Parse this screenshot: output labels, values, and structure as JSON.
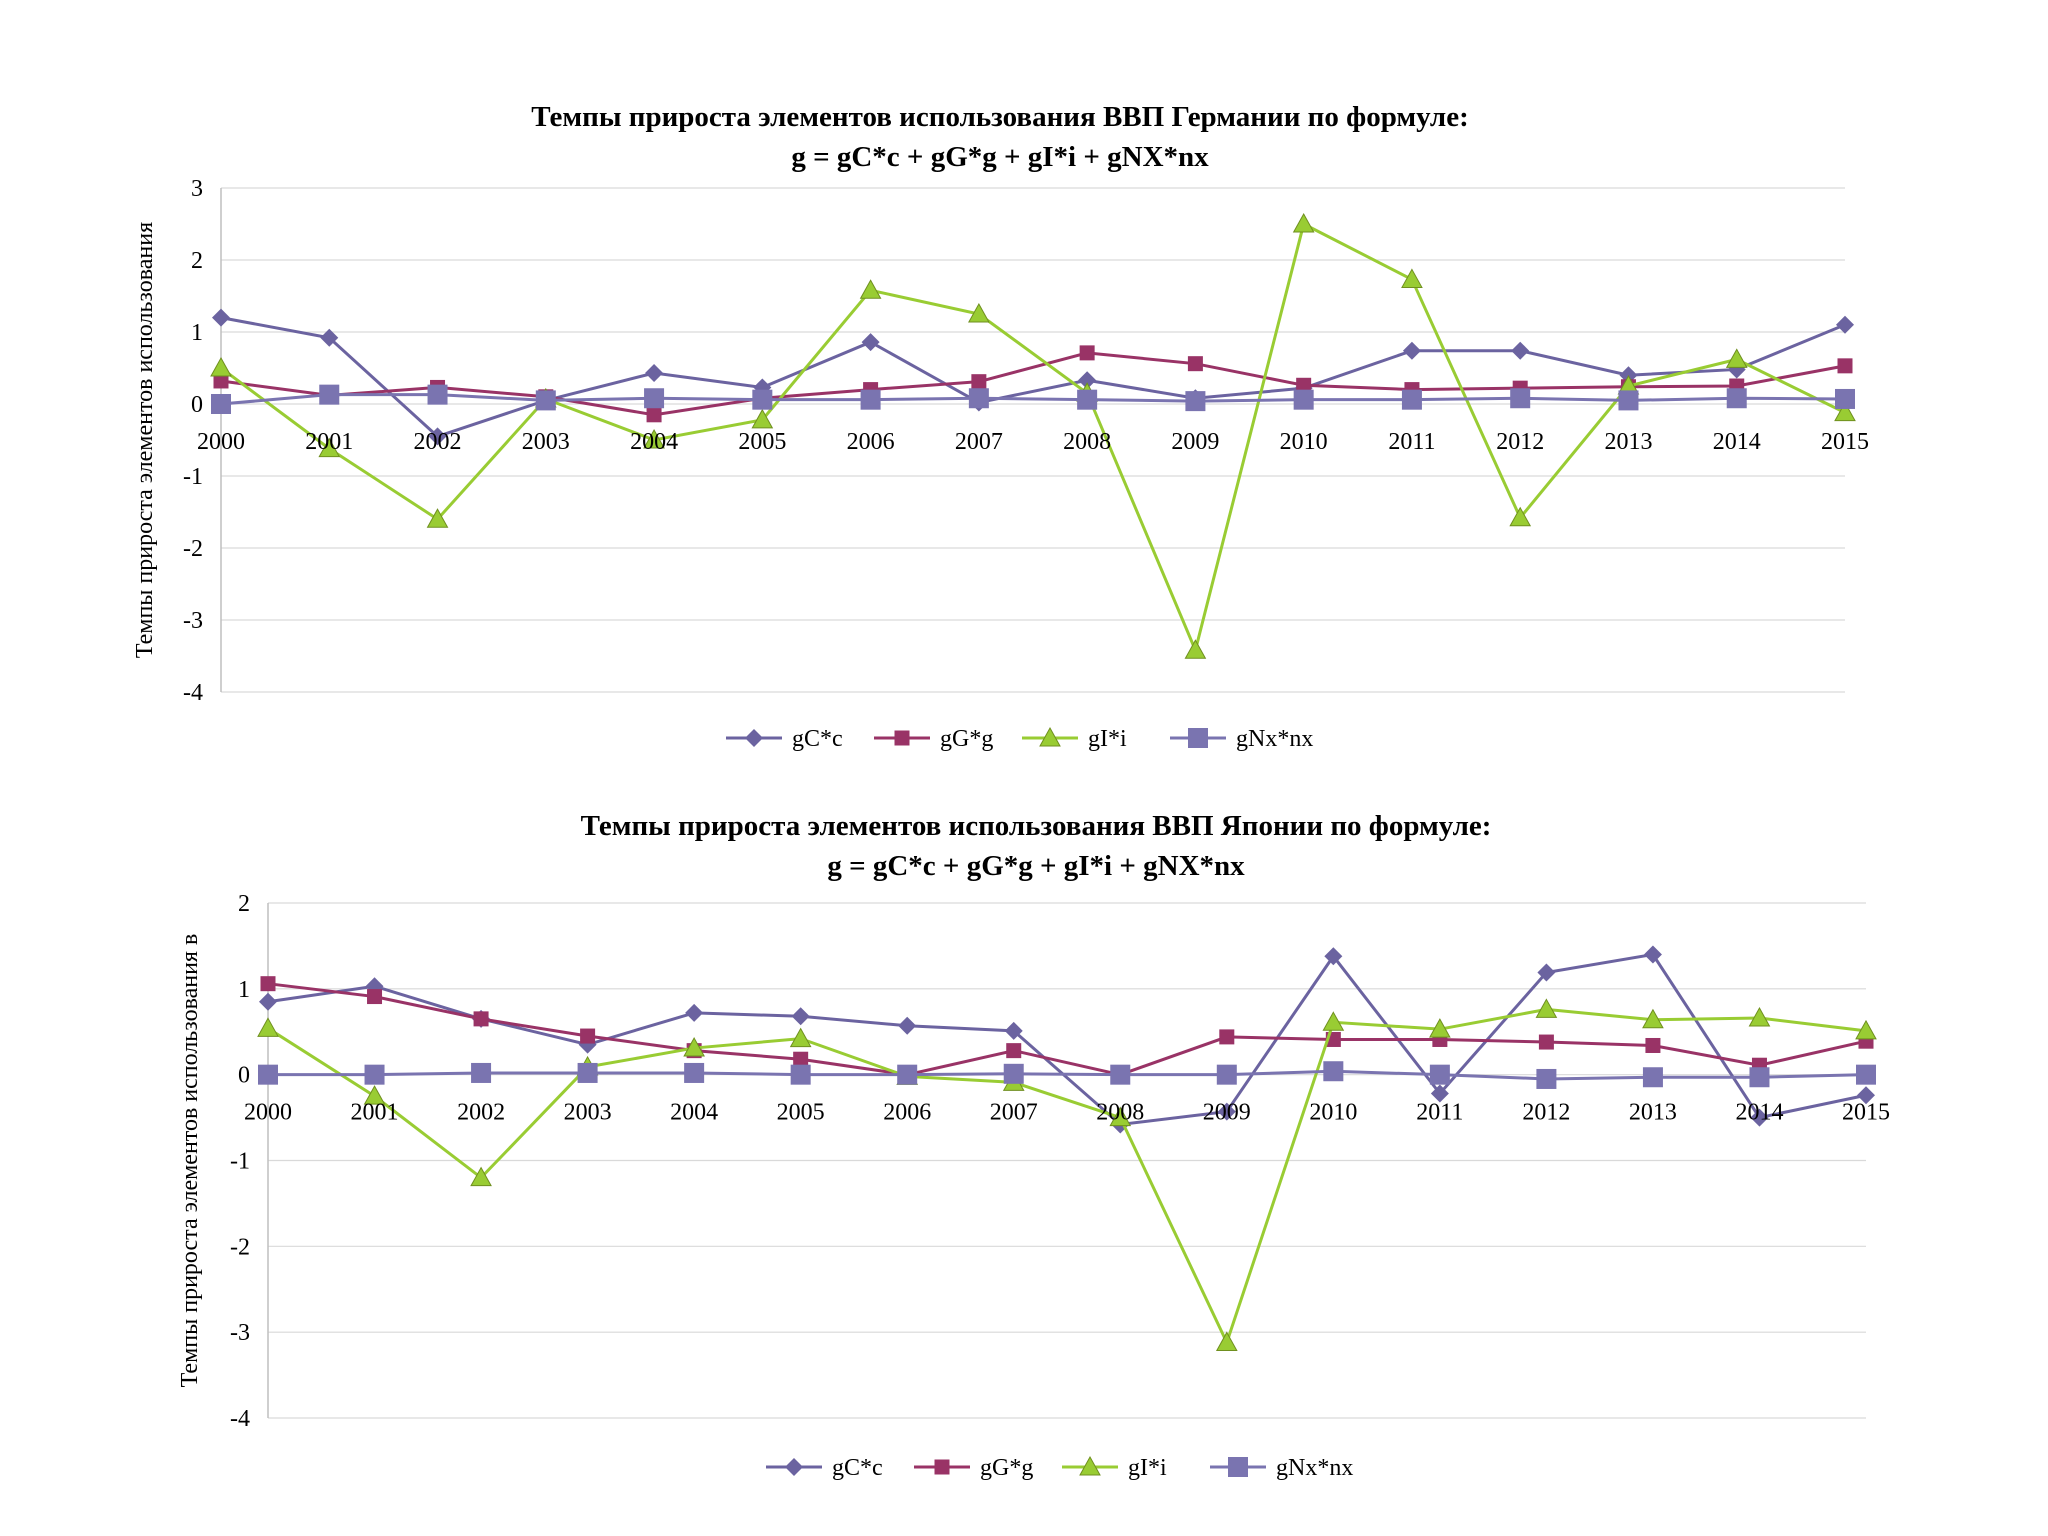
{
  "colors": {
    "gCc": "#6b63a0",
    "gGg": "#993366",
    "gIi": "#99cc33",
    "gNx": "#7a74b0",
    "grid": "#d9d9d9",
    "axis": "#bfbfbf"
  },
  "chart_data": [
    {
      "type": "line",
      "title": "Темпы прироста элементов использования ВВП Германии по формуле:",
      "subtitle": "g = gC*c + gG*g + gI*i + gNX*nx",
      "ylabel": "Темпы прироста элементов использования",
      "ylim": [
        -4,
        3
      ],
      "yticks": [
        "3",
        "2",
        "1",
        "0",
        "-1",
        "-2",
        "-3",
        "-4"
      ],
      "grid": true,
      "legend_position": "bottom",
      "categories": [
        "2000",
        "2001",
        "2002",
        "2003",
        "2004",
        "2005",
        "2006",
        "2007",
        "2008",
        "2009",
        "2010",
        "2011",
        "2012",
        "2013",
        "2014",
        "2015"
      ],
      "series": [
        {
          "name": "gC*c",
          "marker": "diamond",
          "values": [
            1.2,
            0.92,
            -0.45,
            0.05,
            0.43,
            0.23,
            0.86,
            0.02,
            0.33,
            0.08,
            0.22,
            0.74,
            0.74,
            0.4,
            0.48,
            1.1
          ]
        },
        {
          "name": "gG*g",
          "marker": "square-small",
          "values": [
            0.32,
            0.12,
            0.23,
            0.1,
            -0.15,
            0.08,
            0.2,
            0.31,
            0.71,
            0.56,
            0.26,
            0.2,
            0.22,
            0.24,
            0.25,
            0.53
          ]
        },
        {
          "name": "gI*i",
          "marker": "triangle",
          "values": [
            0.5,
            -0.62,
            -1.6,
            0.07,
            -0.5,
            -0.22,
            1.58,
            1.25,
            0.15,
            -3.42,
            2.5,
            1.73,
            -1.58,
            0.25,
            0.62,
            -0.12
          ]
        },
        {
          "name": "gNx*nx",
          "marker": "square",
          "values": [
            0.0,
            0.13,
            0.13,
            0.05,
            0.08,
            0.06,
            0.06,
            0.08,
            0.06,
            0.04,
            0.06,
            0.06,
            0.08,
            0.05,
            0.08,
            0.07
          ]
        }
      ]
    },
    {
      "type": "line",
      "title": "Темпы прироста элементов использования ВВП Японии по формуле:",
      "subtitle": "g = gC*c + gG*g + gI*i + gNX*nx",
      "ylabel": "Темпы прироста элементов использования в",
      "ylim": [
        -4,
        2
      ],
      "yticks": [
        "2",
        "1",
        "0",
        "-1",
        "-2",
        "-3",
        "-4"
      ],
      "grid": true,
      "legend_position": "bottom",
      "categories": [
        "2000",
        "2001",
        "2002",
        "2003",
        "2004",
        "2005",
        "2006",
        "2007",
        "2008",
        "2009",
        "2010",
        "2011",
        "2012",
        "2013",
        "2014",
        "2015"
      ],
      "series": [
        {
          "name": "gC*c",
          "marker": "diamond",
          "values": [
            0.85,
            1.03,
            0.65,
            0.35,
            0.72,
            0.68,
            0.57,
            0.51,
            -0.58,
            -0.43,
            1.38,
            -0.22,
            1.19,
            1.4,
            -0.5,
            -0.24
          ]
        },
        {
          "name": "gG*g",
          "marker": "square-small",
          "values": [
            1.06,
            0.91,
            0.65,
            0.45,
            0.28,
            0.18,
            0.0,
            0.28,
            0.0,
            0.44,
            0.41,
            0.41,
            0.38,
            0.34,
            0.11,
            0.39
          ]
        },
        {
          "name": "gI*i",
          "marker": "triangle",
          "values": [
            0.54,
            -0.25,
            -1.2,
            0.09,
            0.31,
            0.42,
            -0.02,
            -0.09,
            -0.5,
            -3.12,
            0.61,
            0.53,
            0.76,
            0.64,
            0.66,
            0.51
          ]
        },
        {
          "name": "gNx*nx",
          "marker": "square",
          "values": [
            0.0,
            0.0,
            0.02,
            0.02,
            0.02,
            0.0,
            0.0,
            0.01,
            0.0,
            0.0,
            0.04,
            0.0,
            -0.05,
            -0.03,
            -0.03,
            0.0
          ]
        }
      ]
    }
  ]
}
